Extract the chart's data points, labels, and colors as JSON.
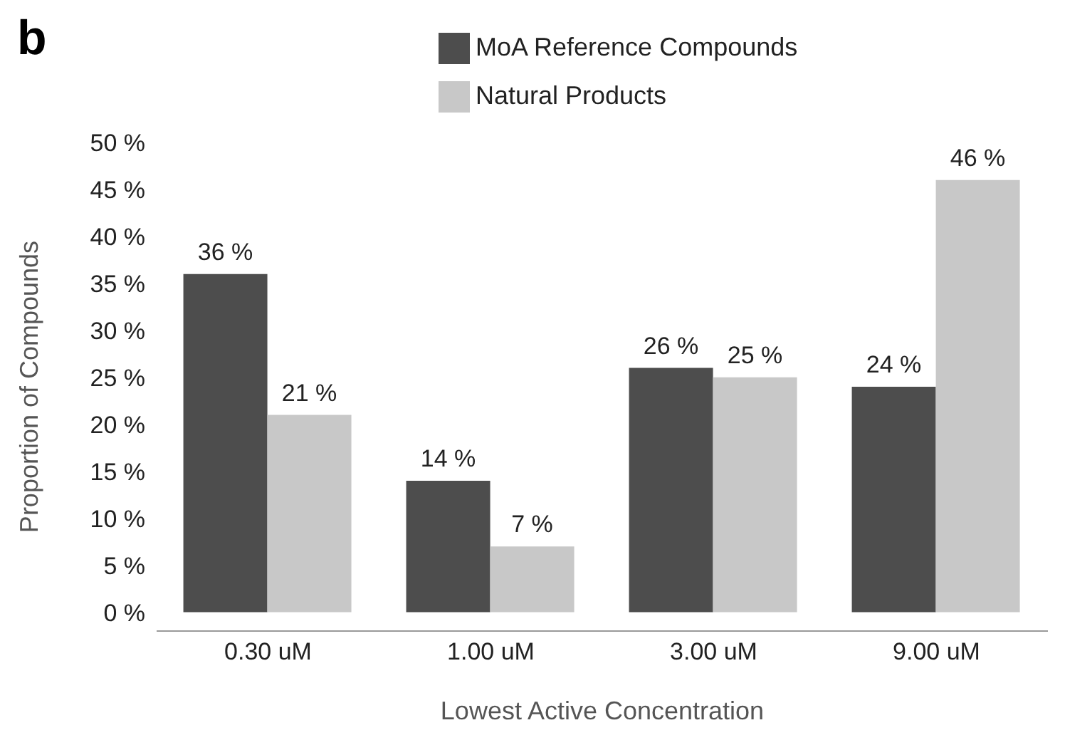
{
  "chart_data": {
    "type": "bar",
    "title": "b",
    "xlabel": "Lowest Active Concentration",
    "ylabel": "Proportion of Compounds",
    "categories": [
      "0.30 uM",
      "1.00 uM",
      "3.00 uM",
      "9.00 uM"
    ],
    "series": [
      {
        "name": "MoA Reference Compounds",
        "color": "#4d4d4d",
        "values": [
          36,
          14,
          26,
          24
        ],
        "value_labels": [
          "36 %",
          "14 %",
          "26 %",
          "24 %"
        ]
      },
      {
        "name": "Natural Products",
        "color": "#c8c8c8",
        "values": [
          21,
          7,
          25,
          46
        ],
        "value_labels": [
          "21 %",
          "7 %",
          "25 %",
          "46 %"
        ]
      }
    ],
    "ylim": [
      -2,
      50
    ],
    "yticks": [
      {
        "value": 0,
        "label": "0 %"
      },
      {
        "value": 5,
        "label": "5 %"
      },
      {
        "value": 10,
        "label": "10 %"
      },
      {
        "value": 15,
        "label": "15 %"
      },
      {
        "value": 20,
        "label": "20 %"
      },
      {
        "value": 25,
        "label": "25 %"
      },
      {
        "value": 30,
        "label": "30 %"
      },
      {
        "value": 35,
        "label": "35 %"
      },
      {
        "value": 40,
        "label": "40 %"
      },
      {
        "value": 45,
        "label": "45 %"
      },
      {
        "value": 50,
        "label": "50 %"
      }
    ],
    "grid": false,
    "legend": "top"
  }
}
